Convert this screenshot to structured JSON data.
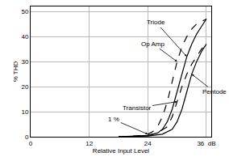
{
  "chart_data": {
    "type": "line",
    "x_label": "Relative Input Level",
    "y_label": "% THD",
    "xlim": [
      0,
      37
    ],
    "ylim": [
      0,
      52
    ],
    "xticks": [
      0,
      12,
      24,
      {
        "value": 36,
        "label": "36  dB"
      }
    ],
    "yticks": [
      0,
      10,
      20,
      30,
      40,
      50
    ],
    "grid": true,
    "color": "#000000",
    "series": [
      {
        "name": "Op Amp",
        "line_style": "dash",
        "x": [
          18,
          22,
          24,
          25,
          26,
          27,
          28,
          29,
          30,
          31,
          32,
          33,
          34,
          35,
          36
        ],
        "values": [
          0,
          0.3,
          1,
          2,
          4,
          8,
          14,
          22,
          30,
          36,
          40,
          43,
          45,
          46,
          47
        ]
      },
      {
        "name": "Triode",
        "line_style": "solid",
        "x": [
          18,
          24,
          26,
          27,
          28,
          29,
          30,
          31,
          32,
          33,
          34,
          35,
          36
        ],
        "values": [
          0,
          0.5,
          1.5,
          3,
          6,
          11,
          18,
          25,
          32,
          37,
          41,
          44,
          47
        ]
      },
      {
        "name": "Transistor",
        "line_style": "dash",
        "x": [
          18,
          24,
          26,
          28,
          29,
          30,
          31,
          32,
          33,
          34,
          35,
          36
        ],
        "values": [
          0,
          0.5,
          1.5,
          4,
          8,
          14,
          20,
          25,
          29,
          32,
          35,
          37
        ]
      },
      {
        "name": "Pentode",
        "line_style": "solid",
        "x": [
          18,
          24,
          27,
          29,
          30,
          31,
          32,
          33,
          34,
          35,
          36
        ],
        "values": [
          0,
          0.3,
          1,
          3,
          6,
          11,
          18,
          25,
          30,
          34,
          37
        ]
      }
    ],
    "annotations": [
      {
        "text": "Op Amp",
        "x": 30,
        "y": 30
      },
      {
        "text": "Triode",
        "x": 32,
        "y": 32
      },
      {
        "text": "Transistor",
        "x": 30,
        "y": 14
      },
      {
        "text": "Pentode",
        "x": 33,
        "y": 25
      },
      {
        "text": "1 %",
        "x": 24,
        "y": 1
      }
    ]
  }
}
